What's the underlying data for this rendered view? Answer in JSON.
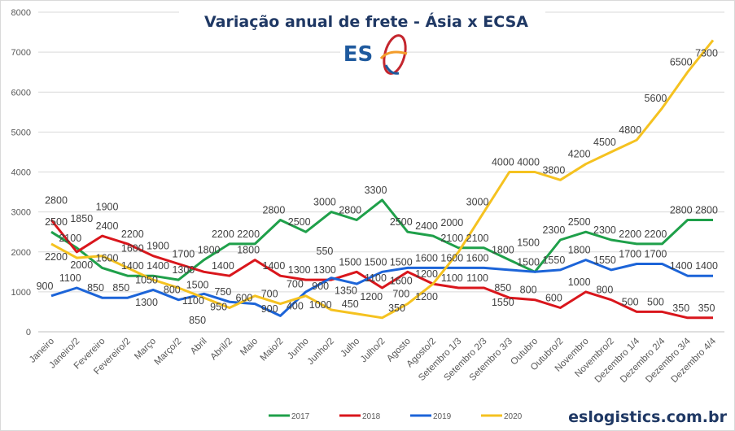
{
  "chart_data": {
    "type": "line",
    "title": "Variação anual de frete - Ásia x ECSA",
    "logo_text": "ES",
    "footer": "eslogistics.com.br",
    "xlabel": "",
    "ylabel": "",
    "ylim": [
      0,
      8000
    ],
    "yticks": [
      0,
      1000,
      2000,
      3000,
      4000,
      5000,
      6000,
      7000,
      8000
    ],
    "grid": true,
    "legend_position": "bottom",
    "categories": [
      "Janeiro",
      "Janeiro/2",
      "Fevereiro",
      "Fevereiro/2",
      "Março",
      "Março/2",
      "Abril",
      "Abril/2",
      "Maio",
      "Maio/2",
      "Junho",
      "Junho/2",
      "Julho",
      "Julho/2",
      "Agosto",
      "Agosto/2",
      "Setembro 1/3",
      "Setembro 2/3",
      "Setembro 3/3",
      "Outubro",
      "Outubro/2",
      "Novembro",
      "Novembro/2",
      "Dezembro 1/4",
      "Dezembro 2/4",
      "Dezembro 3/4",
      "Dezembro 4/4"
    ],
    "series": [
      {
        "name": "2017",
        "color": "#1fa04a",
        "values": [
          2500,
          2100,
          1600,
          1400,
          1400,
          1300,
          1800,
          2200,
          2200,
          2800,
          2500,
          3000,
          2800,
          3300,
          2500,
          2400,
          2100,
          2100,
          1800,
          1500,
          2300,
          2500,
          2300,
          2200,
          2200,
          2800,
          2800
        ]
      },
      {
        "name": "2018",
        "color": "#d9161c",
        "values": [
          2800,
          2000,
          2400,
          2200,
          1900,
          1700,
          1500,
          1400,
          1800,
          1400,
          1300,
          1300,
          1500,
          1100,
          1500,
          1200,
          1100,
          1100,
          850,
          800,
          600,
          1000,
          800,
          500,
          500,
          350,
          350
        ]
      },
      {
        "name": "2019",
        "color": "#1c64d8",
        "values": [
          900,
          1100,
          850,
          850,
          1050,
          800,
          950,
          750,
          700,
          400,
          1000,
          1350,
          1200,
          1500,
          1600,
          1600,
          1600,
          1600,
          1550,
          1500,
          1550,
          1800,
          1550,
          1700,
          1700,
          1400,
          1400
        ]
      },
      {
        "name": "2020",
        "color": "#f5c220",
        "values": [
          2200,
          1850,
          1900,
          1600,
          1300,
          1100,
          850,
          600,
          900,
          700,
          900,
          550,
          450,
          350,
          700,
          1200,
          2000,
          3000,
          4000,
          4000,
          3800,
          4200,
          4500,
          4800,
          5600,
          6500,
          7300
        ]
      }
    ]
  }
}
